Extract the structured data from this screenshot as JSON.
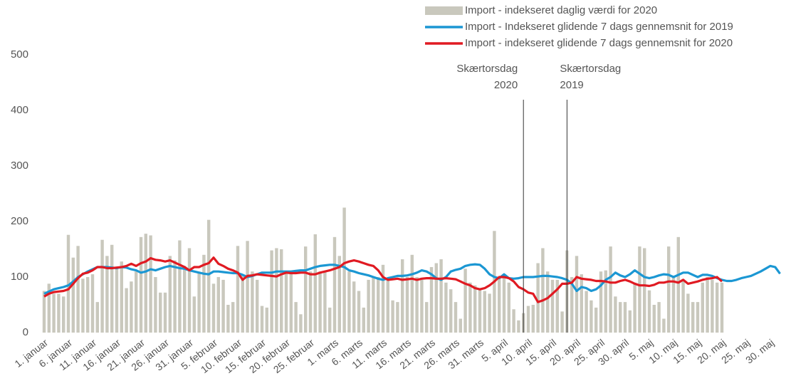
{
  "chart_data": {
    "type": "bar",
    "categories": [
      "1. januar",
      null,
      null,
      null,
      null,
      "6. januar",
      null,
      null,
      null,
      null,
      "11. januar",
      null,
      null,
      null,
      null,
      "16. januar",
      null,
      null,
      null,
      null,
      "21. januar",
      null,
      null,
      null,
      null,
      "26. januar",
      null,
      null,
      null,
      null,
      "31. januar",
      null,
      null,
      null,
      null,
      "5. februar",
      null,
      null,
      null,
      null,
      "10. februar",
      null,
      null,
      null,
      null,
      "15. februar",
      null,
      null,
      null,
      null,
      "20. februar",
      null,
      null,
      null,
      null,
      "25. februar",
      null,
      null,
      null,
      null,
      "1. marts",
      null,
      null,
      null,
      null,
      "6. marts",
      null,
      null,
      null,
      null,
      "11. marts",
      null,
      null,
      null,
      null,
      "16. marts",
      null,
      null,
      null,
      null,
      "21. marts",
      null,
      null,
      null,
      null,
      "26. marts",
      null,
      null,
      null,
      null,
      "31. marts",
      null,
      null,
      null,
      null,
      "5. april",
      null,
      null,
      null,
      null,
      "10. april",
      null,
      null,
      null,
      null,
      "15. april",
      null,
      null,
      null,
      null,
      "20. april",
      null,
      null,
      null,
      null,
      "25. april",
      null,
      null,
      null,
      null,
      "30. april",
      null,
      null,
      null,
      null,
      "5. maj",
      null,
      null,
      null,
      null,
      "10. maj",
      null,
      null,
      null,
      null,
      "15. maj",
      null,
      null,
      null,
      null,
      "20. maj",
      null,
      null,
      null,
      null,
      "25. maj",
      null,
      null,
      null,
      null,
      "30. maj",
      null,
      null
    ],
    "series": [
      {
        "name": "Import - indekseret daglig værdi for 2020",
        "type": "bar",
        "color": "#c9c8bd",
        "values": [
          75,
          88,
          70,
          70,
          65,
          176,
          135,
          156,
          97,
          100,
          105,
          55,
          167,
          138,
          158,
          115,
          128,
          80,
          92,
          110,
          172,
          178,
          175,
          100,
          72,
          72,
          138,
          130,
          166,
          120,
          152,
          65,
          108,
          140,
          203,
          88,
          100,
          95,
          50,
          55,
          156,
          105,
          165,
          110,
          95,
          48,
          45,
          148,
          152,
          150,
          110,
          110,
          55,
          33,
          155,
          110,
          177,
          110,
          110,
          45,
          172,
          138,
          225,
          110,
          92,
          75,
          45,
          95,
          100,
          100,
          122,
          95,
          58,
          55,
          132,
          100,
          140,
          100,
          95,
          55,
          118,
          125,
          132,
          90,
          78,
          55,
          25,
          115,
          90,
          85,
          80,
          75,
          70,
          183,
          100,
          105,
          90,
          42,
          22,
          35,
          48,
          50,
          125,
          152,
          110,
          95,
          95,
          38,
          148,
          100,
          138,
          105,
          75,
          58,
          45,
          110,
          112,
          155,
          65,
          55,
          55,
          40,
          90,
          155,
          152,
          76,
          50,
          55,
          25,
          155,
          100,
          172,
          95,
          70,
          55,
          55,
          90,
          100,
          95,
          90,
          90,
          null,
          null,
          null,
          null,
          null,
          null,
          null,
          null,
          null,
          null,
          null,
          null
        ]
      },
      {
        "name": "Import - Indekseret glidende 7 dags gennemsnit for 2019",
        "type": "line",
        "color": "#1b97d3",
        "values": [
          70,
          74,
          78,
          80,
          82,
          85,
          92,
          100,
          105,
          110,
          114,
          118,
          118,
          118,
          117,
          116,
          118,
          117,
          114,
          112,
          108,
          110,
          114,
          112,
          115,
          118,
          120,
          118,
          116,
          115,
          112,
          110,
          108,
          106,
          105,
          110,
          110,
          109,
          108,
          107,
          107,
          104,
          100,
          102,
          105,
          108,
          108,
          108,
          110,
          110,
          110,
          110,
          111,
          112,
          112,
          115,
          118,
          120,
          121,
          122,
          122,
          120,
          118,
          112,
          110,
          107,
          105,
          103,
          100,
          97,
          95,
          98,
          100,
          102,
          102,
          103,
          105,
          108,
          112,
          110,
          105,
          98,
          95,
          100,
          110,
          113,
          115,
          120,
          122,
          123,
          122,
          115,
          105,
          100,
          98,
          105,
          98,
          97,
          98,
          100,
          100,
          100,
          101,
          102,
          102,
          101,
          100,
          98,
          95,
          88,
          75,
          82,
          80,
          75,
          78,
          85,
          95,
          100,
          108,
          103,
          100,
          105,
          112,
          106,
          100,
          98,
          100,
          103,
          105,
          104,
          100,
          104,
          108,
          108,
          104,
          100,
          104,
          104,
          102,
          98,
          95,
          93,
          93,
          95,
          98,
          100,
          102,
          106,
          110,
          115,
          120,
          118,
          106
        ]
      },
      {
        "name": "Import - indekseret glidende 7 dags gennemsnit for 2020",
        "type": "line",
        "color": "#e01a22",
        "values": [
          65,
          70,
          73,
          74,
          75,
          78,
          88,
          98,
          106,
          108,
          112,
          118,
          118,
          116,
          116,
          117,
          118,
          120,
          124,
          120,
          125,
          128,
          134,
          131,
          130,
          128,
          130,
          126,
          122,
          118,
          112,
          118,
          118,
          122,
          125,
          135,
          124,
          120,
          115,
          112,
          108,
          95,
          102,
          103,
          105,
          104,
          103,
          102,
          101,
          105,
          108,
          107,
          107,
          108,
          108,
          105,
          105,
          108,
          110,
          112,
          115,
          118,
          125,
          128,
          130,
          128,
          125,
          122,
          120,
          112,
          100,
          95,
          96,
          97,
          95,
          96,
          97,
          95,
          97,
          98,
          98,
          97,
          97,
          98,
          97,
          96,
          92,
          88,
          85,
          80,
          78,
          80,
          85,
          92,
          100,
          100,
          98,
          92,
          82,
          78,
          72,
          70,
          55,
          58,
          62,
          70,
          78,
          88,
          88,
          90,
          100,
          97,
          96,
          95,
          93,
          93,
          92,
          90,
          90,
          93,
          95,
          92,
          88,
          85,
          85,
          84,
          86,
          90,
          90,
          92,
          92,
          90,
          95,
          88,
          90,
          92,
          95,
          97,
          98,
          100,
          92,
          null,
          null,
          null,
          null,
          null,
          null,
          null,
          null,
          null,
          null,
          null,
          null
        ]
      }
    ],
    "annotations": [
      {
        "lines": [
          "Skærtorsdag",
          "2020"
        ],
        "x": 99
      },
      {
        "lines": [
          "Skærtorsdag",
          "2019"
        ],
        "x": 108
      }
    ],
    "ylim": [
      0,
      500
    ],
    "yticks": [
      0,
      100,
      200,
      300,
      400,
      500
    ],
    "grid": false,
    "legend": "top-right"
  }
}
